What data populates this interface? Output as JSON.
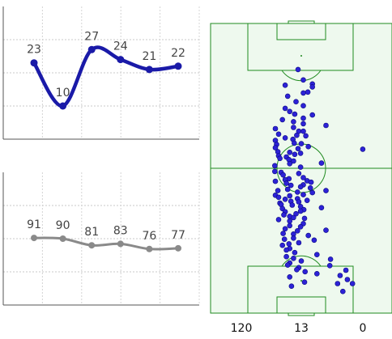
{
  "chart_data": [
    {
      "type": "line",
      "x": [
        1,
        2,
        3,
        4,
        5,
        6
      ],
      "series": [
        {
          "values": [
            23,
            10,
            27,
            24,
            21,
            22
          ]
        }
      ],
      "data_labels": [
        "23",
        "10",
        "27",
        "24",
        "21",
        "22"
      ],
      "ylim": [
        0,
        40
      ],
      "grid": true,
      "style": {
        "color": "#1a1aa8"
      }
    },
    {
      "type": "line",
      "x": [
        1,
        2,
        3,
        4,
        5,
        6
      ],
      "series": [
        {
          "values": [
            91,
            90,
            81,
            83,
            76,
            77
          ]
        }
      ],
      "data_labels": [
        "91",
        "90",
        "81",
        "83",
        "76",
        "77"
      ],
      "ylim": [
        0,
        180
      ],
      "grid": true,
      "style": {
        "color": "#8a8a8a"
      }
    },
    {
      "type": "scatter",
      "field": "football-pitch",
      "x": [
        48.2,
        56.1,
        51.1,
        41.1,
        56.1,
        53.6,
        42.5,
        51.1,
        47.1,
        51.1,
        41.1,
        43.6,
        46.4,
        51.1,
        56.1,
        39.6,
        45.7,
        51.1,
        63.6,
        45.7,
        35.7,
        48.6,
        51.1,
        37.5,
        47.5,
        52.5,
        41.1,
        45.4,
        35.7,
        46.1,
        50.0,
        36.4,
        53.9,
        35.7,
        48.2,
        37.1,
        83.9,
        43.6,
        49.6,
        46.4,
        37.5,
        41.8,
        38.2,
        43.2,
        45.7,
        61.1,
        43.6,
        35.4,
        49.6,
        35.4,
        38.9,
        48.6,
        40.0,
        51.1,
        43.2,
        41.1,
        53.2,
        35.7,
        55.4,
        41.8,
        51.1,
        44.3,
        49.6,
        55.0,
        42.5,
        37.1,
        63.6,
        47.9,
        56.1,
        51.1,
        35.7,
        43.6,
        37.5,
        47.9,
        41.1,
        53.2,
        44.3,
        48.6,
        38.2,
        38.9,
        45.0,
        49.6,
        61.1,
        39.6,
        51.4,
        49.6,
        41.1,
        47.1,
        40.4,
        43.6,
        45.7,
        51.8,
        37.5,
        43.6,
        51.1,
        43.6,
        49.6,
        41.1,
        63.6,
        47.9,
        40.0,
        45.7,
        53.9,
        45.7,
        40.7,
        57.1,
        48.6,
        43.2,
        39.6,
        43.6,
        41.8,
        46.4,
        58.6,
        41.8,
        45.7,
        66.1,
        50.0,
        43.6,
        42.5,
        65.7,
        48.6,
        47.5,
        74.6,
        52.1,
        58.6,
        71.4,
        43.6,
        75.4,
        51.8,
        70.0,
        78.2,
        44.6,
        72.9
      ],
      "y": [
        15.9,
        20.9,
        19.5,
        21.3,
        21.9,
        23.7,
        25.1,
        24.0,
        27.0,
        28.4,
        29.3,
        30.4,
        31.3,
        32.7,
        31.6,
        33.2,
        33.9,
        34.6,
        35.2,
        35.9,
        36.3,
        37.2,
        37.2,
        38.2,
        38.6,
        38.8,
        39.5,
        40.0,
        40.4,
        41.3,
        41.5,
        41.8,
        42.5,
        42.9,
        43.2,
        44.3,
        43.4,
        44.5,
        44.8,
        45.2,
        45.7,
        46.1,
        46.6,
        47.0,
        47.5,
        48.2,
        48.4,
        49.1,
        49.6,
        51.1,
        51.4,
        51.8,
        52.3,
        53.2,
        53.6,
        53.9,
        54.3,
        54.5,
        54.8,
        55.2,
        55.7,
        55.9,
        56.4,
        56.8,
        57.3,
        57.7,
        57.7,
        58.2,
        58.4,
        59.1,
        59.3,
        59.5,
        60.0,
        60.5,
        60.7,
        61.1,
        61.4,
        61.6,
        62.0,
        62.5,
        62.7,
        63.2,
        63.6,
        63.9,
        64.3,
        64.8,
        65.0,
        65.7,
        66.1,
        66.6,
        67.0,
        67.3,
        67.7,
        68.2,
        69.1,
        69.8,
        70.2,
        70.9,
        71.4,
        71.6,
        72.5,
        72.7,
        73.2,
        74.1,
        74.5,
        74.8,
        75.7,
        76.1,
        76.6,
        77.7,
        78.2,
        79.1,
        79.8,
        80.5,
        81.1,
        81.4,
        82.0,
        82.7,
        83.4,
        83.6,
        84.3,
        85.0,
        85.2,
        85.7,
        86.4,
        87.0,
        87.5,
        88.4,
        89.3,
        89.8,
        89.8,
        90.7,
        92.5
      ],
      "xlim": [
        0,
        100
      ],
      "ylim": [
        0,
        100
      ],
      "style": {
        "color": "#2d22d6",
        "edge": "#0a0a80",
        "pitch": "#eef9ee",
        "lines": "#1f8a1f"
      }
    }
  ],
  "counts": [
    "120",
    "13",
    "0"
  ]
}
